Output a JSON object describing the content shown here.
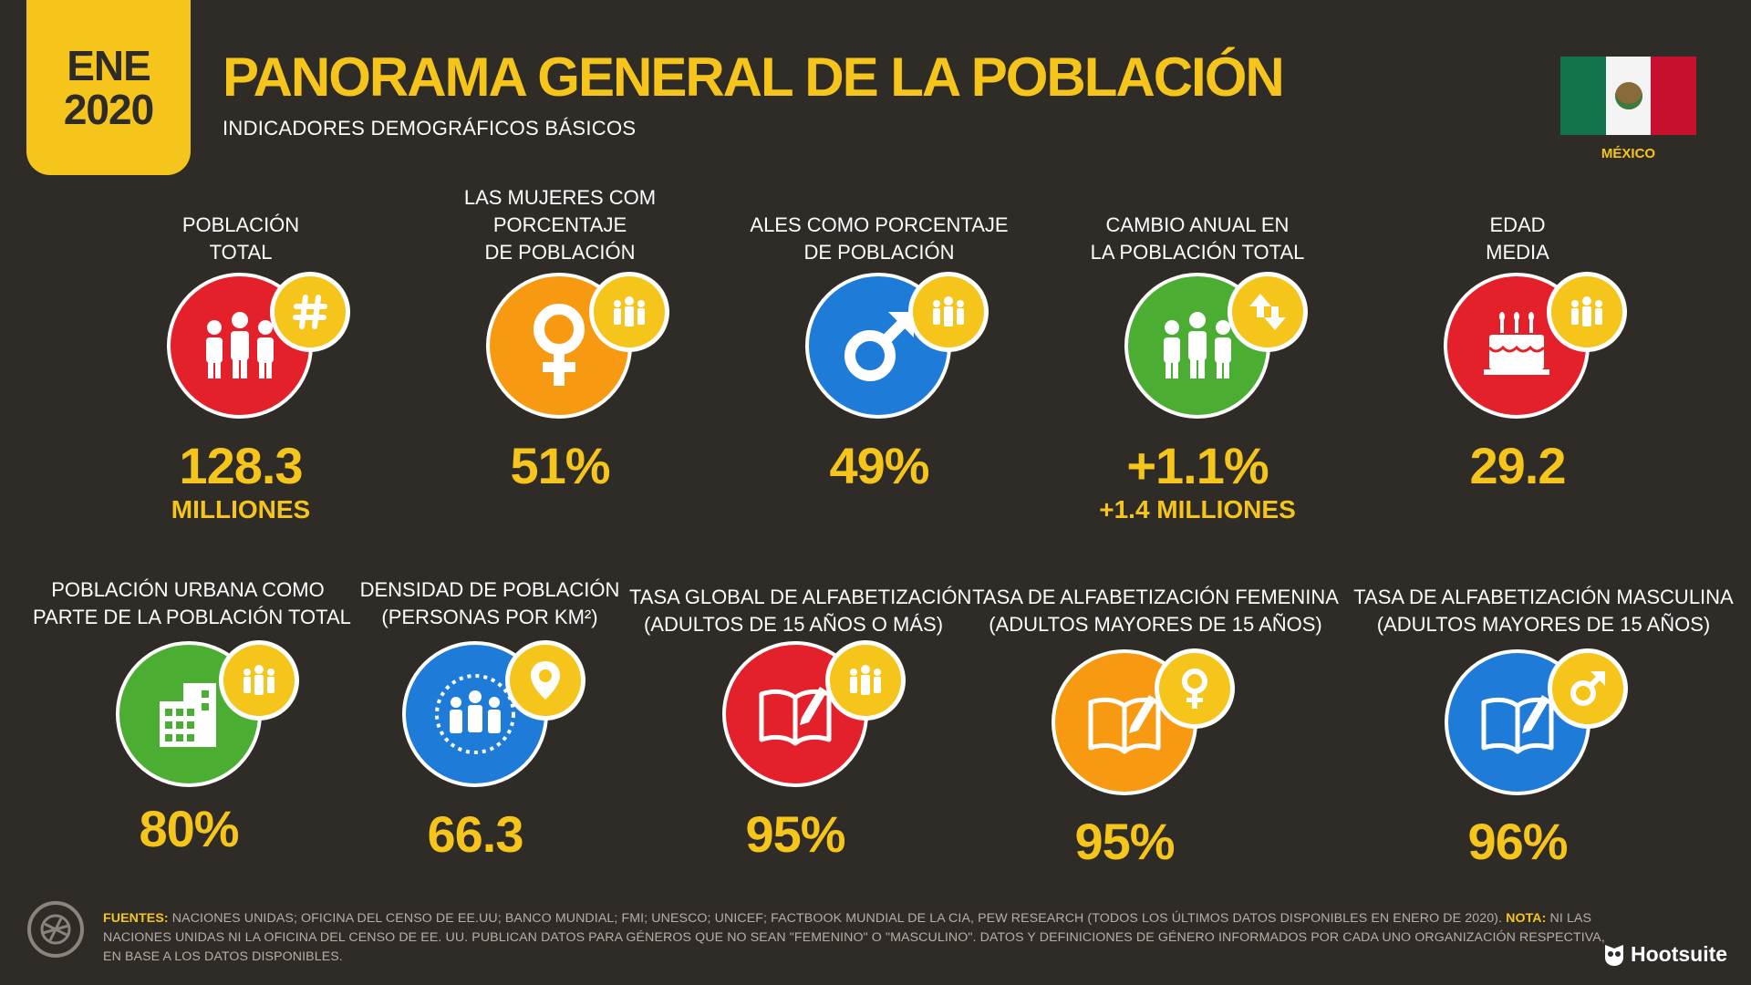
{
  "header": {
    "date_month": "ENE",
    "date_year": "2020",
    "title": "PANORAMA GENERAL DE LA POBLACIÓN",
    "subtitle": "INDICADORES DEMOGRÁFICOS BÁSICOS",
    "country": "MÉXICO"
  },
  "colors": {
    "background": "#2f2b27",
    "accent_yellow": "#f5c51c",
    "red": "#e4202a",
    "orange": "#f79a12",
    "blue": "#1f7bd8",
    "green": "#4bae32"
  },
  "top_stats": [
    {
      "label_lines": [
        "POBLACIÓN",
        "TOTAL"
      ],
      "value": "128.3",
      "sub": "MILLIONES",
      "color": "red",
      "icon": "people-icon",
      "badge_icon": "hash-icon"
    },
    {
      "label_lines": [
        "LAS MUJERES COM",
        "PORCENTAJE",
        "DE POBLACIÓN"
      ],
      "value": "51%",
      "sub": "",
      "color": "orange",
      "icon": "female-symbol-icon",
      "badge_icon": "people-icon"
    },
    {
      "label_lines": [
        "ALES COMO PORCENTAJE",
        "DE POBLACIÓN"
      ],
      "value": "49%",
      "sub": "",
      "color": "blue",
      "icon": "male-symbol-icon",
      "badge_icon": "people-icon"
    },
    {
      "label_lines": [
        "CAMBIO ANUAL EN",
        "LA POBLACIÓN TOTAL"
      ],
      "value": "+1.1%",
      "sub": "+1.4 MILLIONES",
      "color": "green",
      "icon": "people-icon",
      "badge_icon": "up-down-arrows-icon"
    },
    {
      "label_lines": [
        "EDAD",
        "MEDIA"
      ],
      "value": "29.2",
      "sub": "",
      "color": "red",
      "icon": "birthday-cake-icon",
      "badge_icon": "people-icon"
    }
  ],
  "bottom_stats": [
    {
      "label_lines": [
        "POBLACIÓN URBANA COMO",
        "PARTE DE LA POBLACIÓN TOTAL"
      ],
      "value": "80%",
      "color": "green",
      "icon": "building-icon",
      "badge_icon": "people-icon"
    },
    {
      "label_lines": [
        "DENSIDAD DE POBLACIÓN",
        "(PERSONAS POR KM²)"
      ],
      "value": "66.3",
      "color": "blue",
      "icon": "people-icon",
      "badge_icon": "map-pin-icon"
    },
    {
      "label_lines": [
        "TASA GLOBAL DE ALFABETIZACIÓN",
        "(ADULTOS DE 15 AÑOS O MÁS)"
      ],
      "value": "95%",
      "color": "red",
      "icon": "book-icon",
      "badge_icon": "people-icon"
    },
    {
      "label_lines": [
        "TASA DE ALFABETIZACIÓN FEMENINA",
        "(ADULTOS MAYORES DE 15 AÑOS)"
      ],
      "value": "95%",
      "color": "orange",
      "icon": "book-icon",
      "badge_icon": "female-symbol-icon"
    },
    {
      "label_lines": [
        "TASA DE ALFABETIZACIÓN MASCULINA",
        "(ADULTOS MAYORES DE 15 AÑOS)"
      ],
      "value": "96%",
      "color": "blue",
      "icon": "book-icon",
      "badge_icon": "male-symbol-icon"
    }
  ],
  "footer": {
    "sources_label": "FUENTES:",
    "sources_text": " NACIONES UNIDAS; OFICINA DEL CENSO DE EE.UU; BANCO MUNDIAL; FMI; UNESCO; UNICEF; FACTBOOK MUNDIAL DE LA CIA, PEW RESEARCH (TODOS LOS ÚLTIMOS DATOS DISPONIBLES EN ENERO DE 2020). ",
    "note_label": "NOTA:",
    "note_text": " NI LAS NACIONES UNIDAS NI LA OFICINA DEL CENSO DE EE. UU. PUBLICAN DATOS PARA GÉNEROS QUE NO SEAN \"FEMENINO\" O \"MASCULINO\". DATOS Y DEFINICIONES DE GÉNERO INFORMADOS POR CADA UNO ORGANIZACIÓN RESPECTIVA, EN BASE A LOS DATOS DISPONIBLES.",
    "brand": "Hootsuite"
  }
}
